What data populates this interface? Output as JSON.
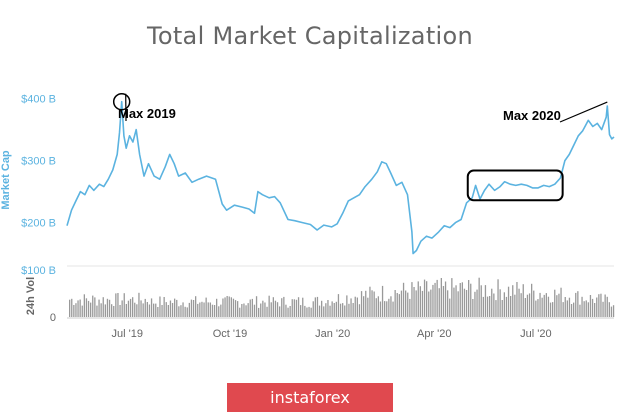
{
  "chart_data": {
    "type": "line",
    "title": "Total Market Capitalization",
    "ylabel": "Market Cap",
    "ylabel2": "24h Vol",
    "ylim": [
      130,
      430
    ],
    "y_ticks": [
      {
        "value": 200,
        "label": "$200 B"
      },
      {
        "value": 300,
        "label": "$300 B"
      },
      {
        "value": 400,
        "label": "$400 B"
      }
    ],
    "vol_ylim": [
      0,
      100
    ],
    "vol_ticks": [
      {
        "value": 0,
        "label": "0"
      },
      {
        "value": 100,
        "label": "$100 B"
      }
    ],
    "x_range": [
      "2019-05-08",
      "2020-09-09"
    ],
    "x_ticks": [
      {
        "date": "2019-07-01",
        "label": "Jul '19"
      },
      {
        "date": "2019-10-01",
        "label": "Oct '19"
      },
      {
        "date": "2020-01-01",
        "label": "Jan '20"
      },
      {
        "date": "2020-04-01",
        "label": "Apr '20"
      },
      {
        "date": "2020-07-01",
        "label": "Jul '20"
      }
    ],
    "series": [
      {
        "color": "#5bb3e0",
        "points": [
          [
            "2019-05-08",
            195
          ],
          [
            "2019-05-12",
            220
          ],
          [
            "2019-05-16",
            235
          ],
          [
            "2019-05-20",
            250
          ],
          [
            "2019-05-24",
            245
          ],
          [
            "2019-05-28",
            260
          ],
          [
            "2019-06-01",
            252
          ],
          [
            "2019-06-06",
            262
          ],
          [
            "2019-06-10",
            258
          ],
          [
            "2019-06-14",
            270
          ],
          [
            "2019-06-18",
            285
          ],
          [
            "2019-06-22",
            310
          ],
          [
            "2019-06-24",
            345
          ],
          [
            "2019-06-26",
            395
          ],
          [
            "2019-06-28",
            340
          ],
          [
            "2019-06-30",
            320
          ],
          [
            "2019-07-03",
            340
          ],
          [
            "2019-07-06",
            330
          ],
          [
            "2019-07-09",
            350
          ],
          [
            "2019-07-12",
            310
          ],
          [
            "2019-07-16",
            275
          ],
          [
            "2019-07-20",
            295
          ],
          [
            "2019-07-25",
            275
          ],
          [
            "2019-07-30",
            270
          ],
          [
            "2019-08-04",
            290
          ],
          [
            "2019-08-08",
            310
          ],
          [
            "2019-08-12",
            295
          ],
          [
            "2019-08-16",
            275
          ],
          [
            "2019-08-22",
            280
          ],
          [
            "2019-08-28",
            265
          ],
          [
            "2019-09-03",
            270
          ],
          [
            "2019-09-10",
            275
          ],
          [
            "2019-09-18",
            270
          ],
          [
            "2019-09-24",
            230
          ],
          [
            "2019-09-28",
            220
          ],
          [
            "2019-10-05",
            228
          ],
          [
            "2019-10-12",
            225
          ],
          [
            "2019-10-18",
            222
          ],
          [
            "2019-10-23",
            215
          ],
          [
            "2019-10-26",
            250
          ],
          [
            "2019-10-30",
            245
          ],
          [
            "2019-11-05",
            240
          ],
          [
            "2019-11-10",
            242
          ],
          [
            "2019-11-15",
            232
          ],
          [
            "2019-11-22",
            205
          ],
          [
            "2019-11-28",
            203
          ],
          [
            "2019-12-05",
            200
          ],
          [
            "2019-12-12",
            197
          ],
          [
            "2019-12-18",
            188
          ],
          [
            "2019-12-24",
            196
          ],
          [
            "2019-12-31",
            193
          ],
          [
            "2020-01-05",
            198
          ],
          [
            "2020-01-10",
            215
          ],
          [
            "2020-01-15",
            235
          ],
          [
            "2020-01-20",
            240
          ],
          [
            "2020-01-25",
            245
          ],
          [
            "2020-01-30",
            258
          ],
          [
            "2020-02-05",
            270
          ],
          [
            "2020-02-10",
            282
          ],
          [
            "2020-02-14",
            298
          ],
          [
            "2020-02-18",
            295
          ],
          [
            "2020-02-22",
            280
          ],
          [
            "2020-02-27",
            260
          ],
          [
            "2020-03-03",
            265
          ],
          [
            "2020-03-08",
            245
          ],
          [
            "2020-03-12",
            185
          ],
          [
            "2020-03-13",
            150
          ],
          [
            "2020-03-16",
            155
          ],
          [
            "2020-03-20",
            170
          ],
          [
            "2020-03-25",
            178
          ],
          [
            "2020-03-30",
            175
          ],
          [
            "2020-04-05",
            185
          ],
          [
            "2020-04-10",
            195
          ],
          [
            "2020-04-15",
            192
          ],
          [
            "2020-04-20",
            200
          ],
          [
            "2020-04-25",
            205
          ],
          [
            "2020-04-30",
            232
          ],
          [
            "2020-05-05",
            240
          ],
          [
            "2020-05-08",
            260
          ],
          [
            "2020-05-12",
            238
          ],
          [
            "2020-05-16",
            252
          ],
          [
            "2020-05-20",
            262
          ],
          [
            "2020-05-25",
            252
          ],
          [
            "2020-05-30",
            258
          ],
          [
            "2020-06-03",
            266
          ],
          [
            "2020-06-08",
            262
          ],
          [
            "2020-06-13",
            260
          ],
          [
            "2020-06-18",
            262
          ],
          [
            "2020-06-23",
            260
          ],
          [
            "2020-06-28",
            256
          ],
          [
            "2020-07-03",
            256
          ],
          [
            "2020-07-08",
            260
          ],
          [
            "2020-07-13",
            258
          ],
          [
            "2020-07-18",
            262
          ],
          [
            "2020-07-23",
            272
          ],
          [
            "2020-07-27",
            300
          ],
          [
            "2020-07-31",
            310
          ],
          [
            "2020-08-04",
            325
          ],
          [
            "2020-08-08",
            340
          ],
          [
            "2020-08-12",
            348
          ],
          [
            "2020-08-17",
            365
          ],
          [
            "2020-08-21",
            355
          ],
          [
            "2020-08-25",
            360
          ],
          [
            "2020-08-29",
            350
          ],
          [
            "2020-09-02",
            370
          ],
          [
            "2020-09-03",
            388
          ],
          [
            "2020-09-05",
            342
          ],
          [
            "2020-09-07",
            335
          ],
          [
            "2020-09-09",
            338
          ]
        ]
      }
    ],
    "annotations": [
      {
        "text": "Max 2019",
        "marker": "circle",
        "date": "2019-06-26",
        "value": 395
      },
      {
        "text": "Max 2020",
        "marker": "arrow-line",
        "date": "2020-09-03",
        "value": 388
      },
      {
        "marker": "rounded-rect",
        "date_start": "2020-05-01",
        "date_end": "2020-07-25",
        "value_low": 236,
        "value_high": 284
      }
    ],
    "volume_color": "#999999",
    "grid": false,
    "legend": "none"
  },
  "watermark": "instaforex"
}
